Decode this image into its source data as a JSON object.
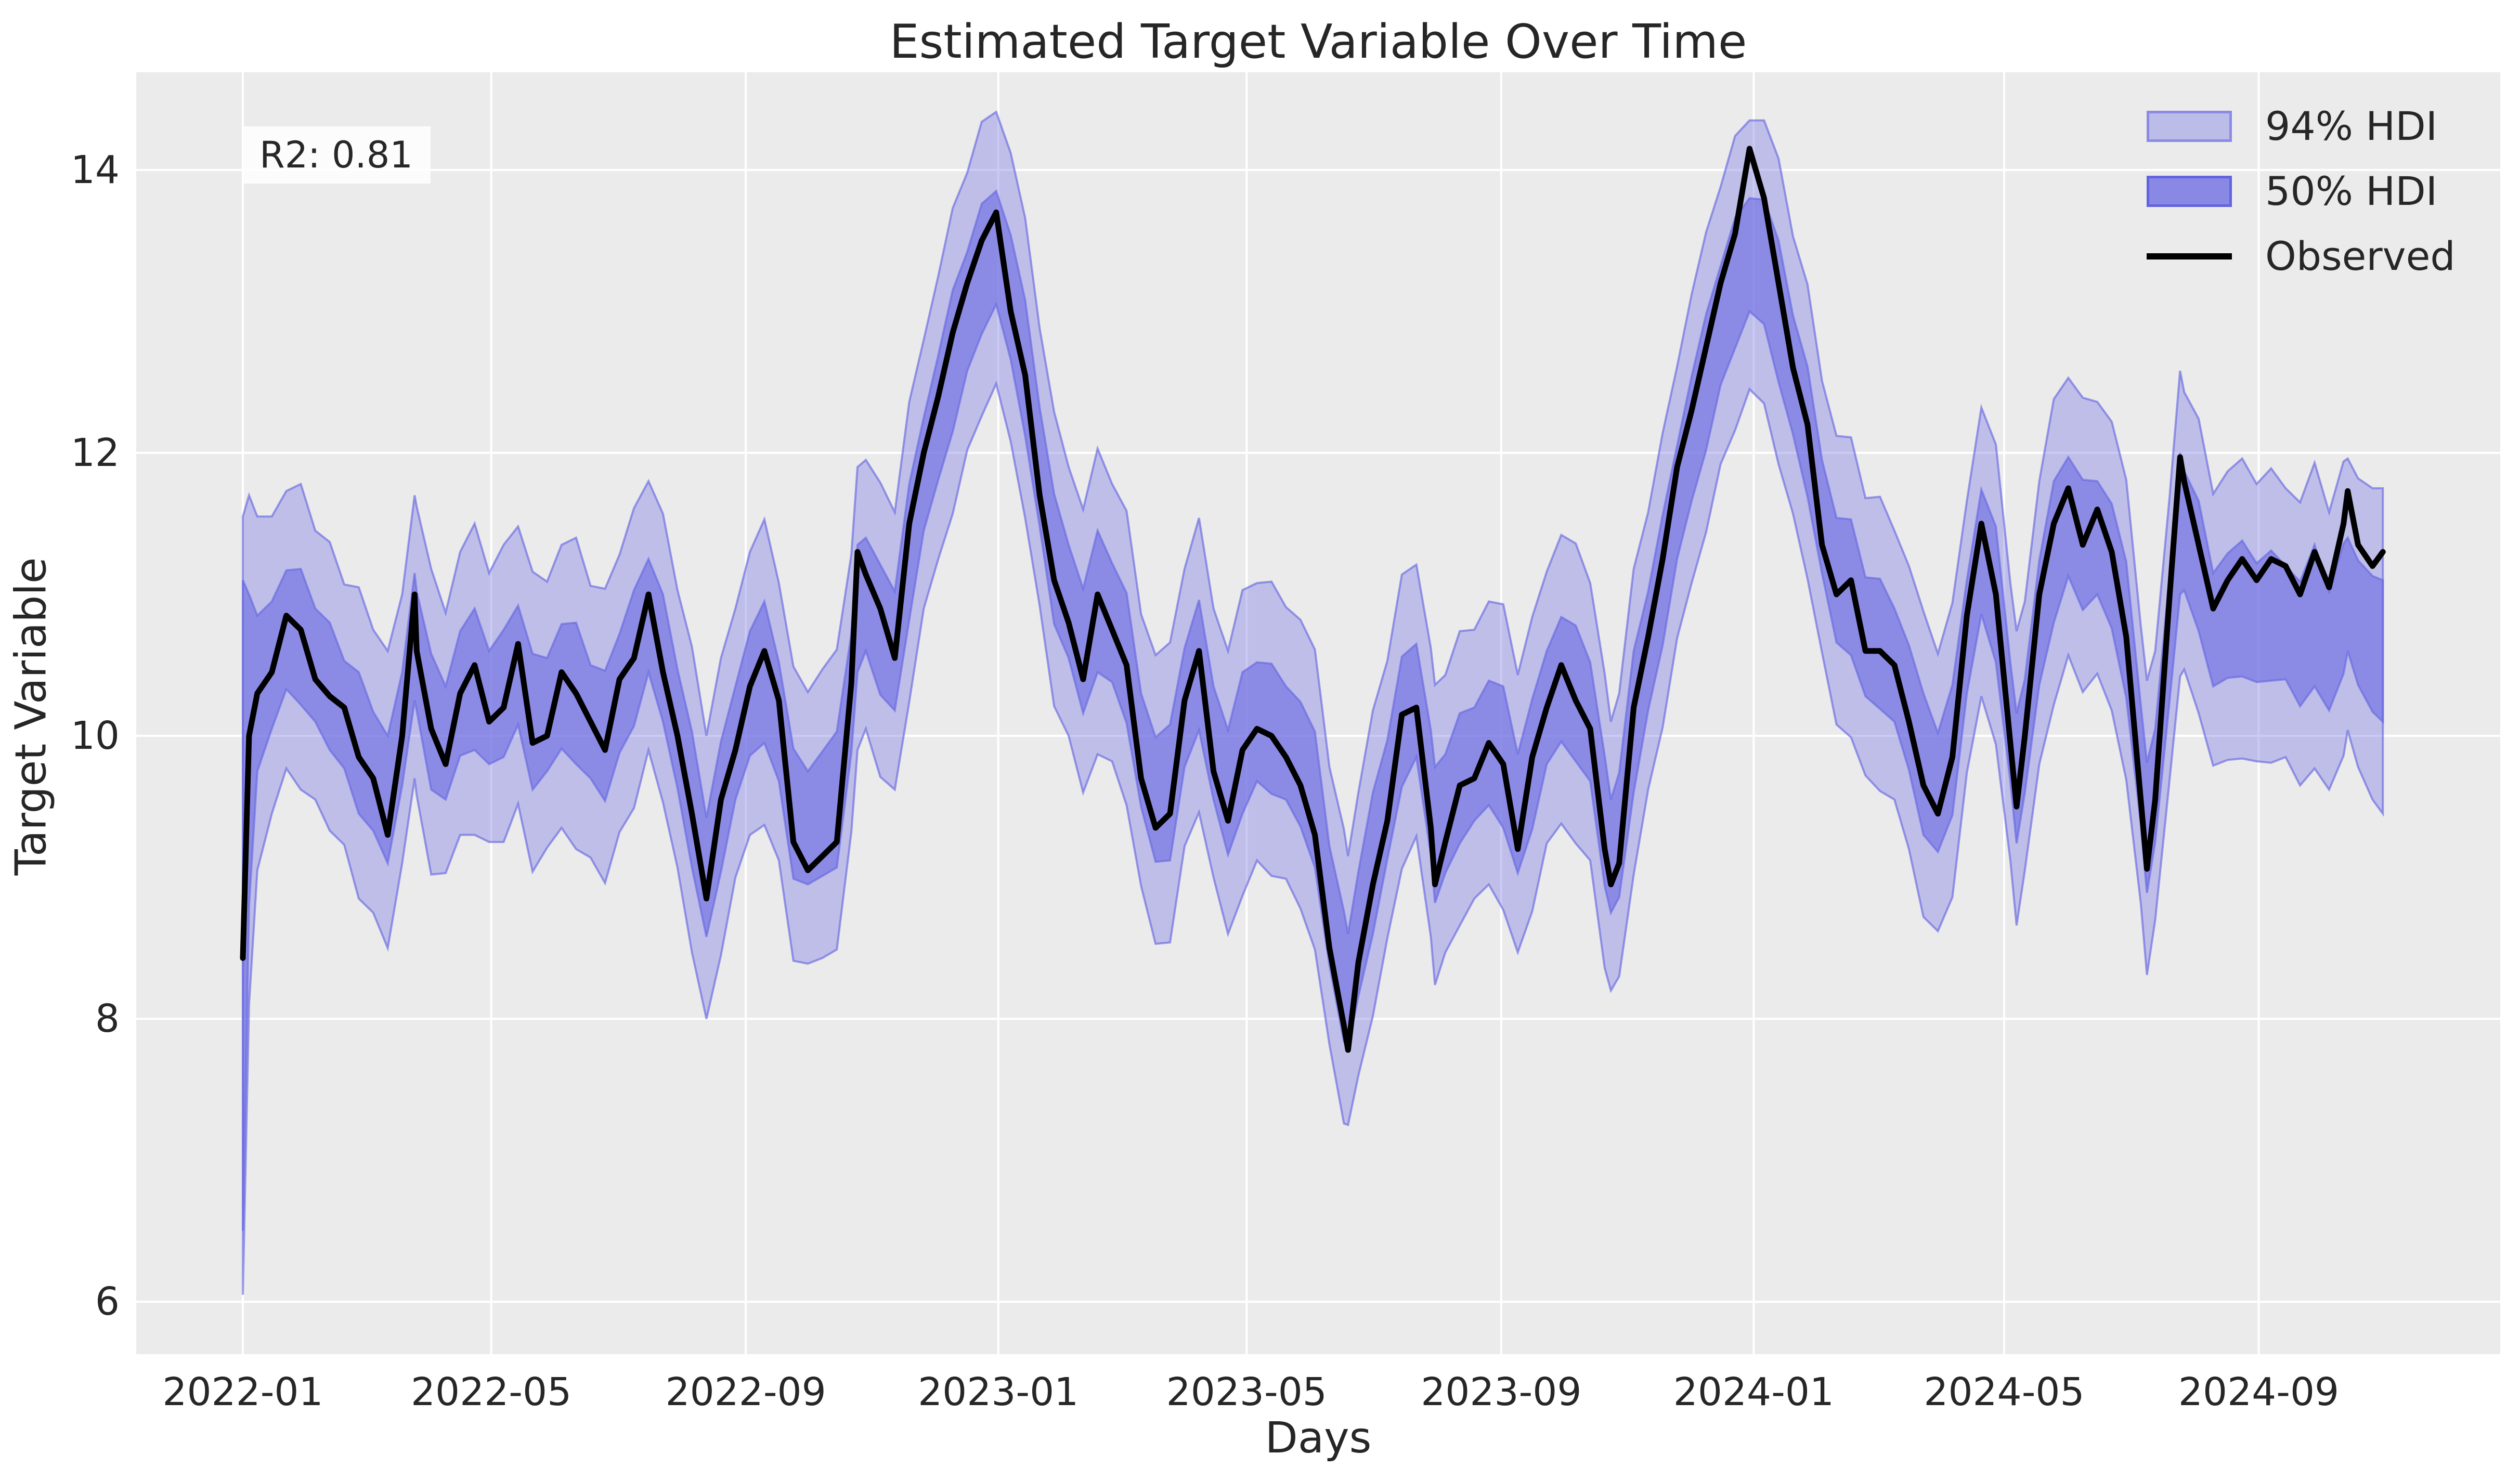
{
  "title": "Estimated Target Variable Over Time",
  "annotation": "R2: 0.81",
  "axes": {
    "xlabel": "Days",
    "ylabel": "Target Variable"
  },
  "legend": {
    "items": [
      {
        "label": "94% HDI",
        "swatch": "hdi94-patch"
      },
      {
        "label": "50% HDI",
        "swatch": "hdi50-patch"
      },
      {
        "label": "Observed",
        "swatch": "observed-line"
      }
    ]
  },
  "colors": {
    "plot_background": "#ebebeb",
    "gridline": "#ffffff",
    "hdi_base": "#7b7be5",
    "hdi94_fill": "rgba(123,123,229,0.40)",
    "hdi50_fill": "rgba(113,113,227,0.66)",
    "hdi_edge": "rgba(104,104,226,0.65)",
    "observed_line": "#000000",
    "text": "#262626"
  },
  "chart_data": {
    "type": "line",
    "title": "Estimated Target Variable Over Time",
    "xlabel": "Days",
    "ylabel": "Target Variable",
    "grid": true,
    "legend_position": "upper right",
    "x_unit": "days since 2022-01-01",
    "xlim_days": [
      -51.5,
      1090.7
    ],
    "ylim": [
      5.63,
      14.69
    ],
    "y_ticks": [
      6,
      8,
      10,
      12,
      14
    ],
    "x_ticks": [
      {
        "label": "2022-01",
        "day": 0
      },
      {
        "label": "2022-05",
        "day": 120
      },
      {
        "label": "2022-09",
        "day": 243
      },
      {
        "label": "2023-01",
        "day": 365
      },
      {
        "label": "2023-05",
        "day": 485
      },
      {
        "label": "2023-09",
        "day": 608
      },
      {
        "label": "2024-01",
        "day": 730
      },
      {
        "label": "2024-05",
        "day": 851
      },
      {
        "label": "2024-09",
        "day": 974
      }
    ],
    "series": [
      {
        "name": "Observed",
        "type": "line",
        "color": "#000000"
      },
      {
        "name": "50% HDI",
        "type": "band",
        "color": "rgba(113,113,227,0.66)"
      },
      {
        "name": "94% HDI",
        "type": "band",
        "color": "rgba(123,123,229,0.40)"
      }
    ],
    "point_format": [
      "day",
      "observed",
      "hdi_mid",
      "hdi50_halfwidth",
      "hdi94_halfwidth"
    ],
    "points": [
      [
        0,
        8.43,
        8.8,
        2.3,
        2.75
      ],
      [
        3,
        10.0,
        9.9,
        1.1,
        1.8
      ],
      [
        7,
        10.3,
        10.3,
        0.55,
        1.25
      ],
      [
        14,
        10.45,
        10.5,
        0.45,
        1.05
      ],
      [
        21,
        10.85,
        10.75,
        0.42,
        0.98
      ],
      [
        28,
        10.75,
        10.7,
        0.48,
        1.08
      ],
      [
        35,
        10.4,
        10.5,
        0.4,
        0.95
      ],
      [
        42,
        10.28,
        10.35,
        0.45,
        1.02
      ],
      [
        49,
        10.2,
        10.15,
        0.38,
        0.92
      ],
      [
        56,
        9.85,
        9.95,
        0.5,
        1.1
      ],
      [
        63,
        9.7,
        9.75,
        0.42,
        1.0
      ],
      [
        70,
        9.3,
        9.55,
        0.45,
        1.05
      ],
      [
        77,
        10.0,
        10.05,
        0.4,
        0.95
      ],
      [
        83,
        11.0,
        10.7,
        0.45,
        1.0
      ],
      [
        84,
        10.6,
        10.6,
        0.42,
        1.02
      ],
      [
        91,
        10.05,
        10.1,
        0.48,
        1.08
      ],
      [
        98,
        9.8,
        9.95,
        0.4,
        0.92
      ],
      [
        105,
        10.3,
        10.3,
        0.44,
        1.0
      ],
      [
        112,
        10.5,
        10.4,
        0.5,
        1.1
      ],
      [
        119,
        10.1,
        10.2,
        0.4,
        0.95
      ],
      [
        126,
        10.2,
        10.3,
        0.45,
        1.05
      ],
      [
        133,
        10.65,
        10.5,
        0.42,
        0.98
      ],
      [
        140,
        9.95,
        10.1,
        0.48,
        1.06
      ],
      [
        147,
        10.0,
        10.15,
        0.4,
        0.94
      ],
      [
        154,
        10.45,
        10.35,
        0.44,
        1.0
      ],
      [
        161,
        10.3,
        10.3,
        0.5,
        1.1
      ],
      [
        168,
        10.1,
        10.1,
        0.4,
        0.96
      ],
      [
        175,
        9.9,
        10.0,
        0.46,
        1.04
      ],
      [
        182,
        10.4,
        10.3,
        0.42,
        0.98
      ],
      [
        189,
        10.55,
        10.55,
        0.48,
        1.06
      ],
      [
        196,
        11.0,
        10.85,
        0.4,
        0.95
      ],
      [
        203,
        10.45,
        10.55,
        0.45,
        1.02
      ],
      [
        210,
        10.0,
        10.05,
        0.42,
        0.98
      ],
      [
        217,
        9.45,
        9.55,
        0.48,
        1.08
      ],
      [
        224,
        8.85,
        9.0,
        0.42,
        1.0
      ],
      [
        231,
        9.55,
        9.5,
        0.46,
        1.05
      ],
      [
        238,
        9.9,
        9.95,
        0.4,
        0.95
      ],
      [
        245,
        10.35,
        10.3,
        0.44,
        1.0
      ],
      [
        252,
        10.6,
        10.45,
        0.5,
        1.08
      ],
      [
        259,
        10.25,
        10.1,
        0.42,
        0.98
      ],
      [
        266,
        9.25,
        9.45,
        0.46,
        1.04
      ],
      [
        273,
        9.05,
        9.35,
        0.4,
        0.96
      ],
      [
        280,
        9.15,
        9.45,
        0.44,
        1.02
      ],
      [
        287,
        9.25,
        9.55,
        0.48,
        1.06
      ],
      [
        294,
        10.37,
        10.3,
        0.42,
        0.98
      ],
      [
        297,
        11.3,
        10.9,
        0.45,
        1.0
      ],
      [
        301,
        11.14,
        11.0,
        0.4,
        0.95
      ],
      [
        308,
        10.9,
        10.75,
        0.46,
        1.04
      ],
      [
        315,
        10.55,
        10.6,
        0.42,
        0.98
      ],
      [
        322,
        11.5,
        11.3,
        0.48,
        1.06
      ],
      [
        329,
        12.0,
        11.85,
        0.4,
        0.95
      ],
      [
        336,
        12.4,
        12.25,
        0.44,
        1.0
      ],
      [
        343,
        12.85,
        12.65,
        0.5,
        1.08
      ],
      [
        350,
        13.2,
        13.0,
        0.42,
        0.98
      ],
      [
        357,
        13.5,
        13.3,
        0.46,
        1.04
      ],
      [
        364,
        13.7,
        13.45,
        0.4,
        0.96
      ],
      [
        371,
        13.0,
        13.1,
        0.44,
        1.02
      ],
      [
        378,
        12.55,
        12.6,
        0.48,
        1.06
      ],
      [
        385,
        11.7,
        11.9,
        0.42,
        0.98
      ],
      [
        392,
        11.1,
        11.25,
        0.46,
        1.04
      ],
      [
        399,
        10.8,
        10.95,
        0.4,
        0.95
      ],
      [
        406,
        10.4,
        10.6,
        0.44,
        1.0
      ],
      [
        413,
        11.0,
        10.95,
        0.5,
        1.08
      ],
      [
        420,
        10.75,
        10.8,
        0.42,
        0.98
      ],
      [
        427,
        10.5,
        10.55,
        0.46,
        1.04
      ],
      [
        434,
        9.7,
        9.9,
        0.4,
        0.96
      ],
      [
        441,
        9.35,
        9.55,
        0.44,
        1.02
      ],
      [
        448,
        9.45,
        9.6,
        0.48,
        1.06
      ],
      [
        455,
        10.25,
        10.2,
        0.42,
        0.98
      ],
      [
        462,
        10.6,
        10.5,
        0.46,
        1.04
      ],
      [
        469,
        9.75,
        9.95,
        0.4,
        0.95
      ],
      [
        476,
        9.4,
        9.6,
        0.44,
        1.0
      ],
      [
        483,
        9.9,
        9.95,
        0.5,
        1.08
      ],
      [
        490,
        10.05,
        10.1,
        0.42,
        0.98
      ],
      [
        497,
        10.0,
        10.05,
        0.46,
        1.04
      ],
      [
        504,
        9.85,
        9.95,
        0.4,
        0.96
      ],
      [
        511,
        9.65,
        9.8,
        0.44,
        1.02
      ],
      [
        518,
        9.3,
        9.55,
        0.48,
        1.06
      ],
      [
        525,
        8.5,
        8.8,
        0.42,
        0.98
      ],
      [
        532,
        7.95,
        8.3,
        0.46,
        1.04
      ],
      [
        534,
        7.78,
        8.2,
        0.4,
        0.95
      ],
      [
        539,
        8.4,
        8.6,
        0.44,
        1.0
      ],
      [
        546,
        8.95,
        9.1,
        0.5,
        1.08
      ],
      [
        553,
        9.4,
        9.55,
        0.42,
        0.98
      ],
      [
        560,
        10.15,
        10.1,
        0.46,
        1.04
      ],
      [
        567,
        10.2,
        10.25,
        0.4,
        0.96
      ],
      [
        574,
        9.35,
        9.6,
        0.44,
        1.02
      ],
      [
        576,
        8.95,
        9.3,
        0.48,
        1.06
      ],
      [
        581,
        9.25,
        9.45,
        0.42,
        0.98
      ],
      [
        588,
        9.65,
        9.7,
        0.46,
        1.04
      ],
      [
        595,
        9.7,
        9.8,
        0.4,
        0.95
      ],
      [
        602,
        9.95,
        9.95,
        0.44,
        1.0
      ],
      [
        609,
        9.8,
        9.85,
        0.5,
        1.08
      ],
      [
        616,
        9.2,
        9.45,
        0.42,
        0.98
      ],
      [
        623,
        9.85,
        9.8,
        0.46,
        1.04
      ],
      [
        630,
        10.2,
        10.2,
        0.4,
        0.96
      ],
      [
        637,
        10.5,
        10.4,
        0.44,
        1.02
      ],
      [
        644,
        10.25,
        10.3,
        0.48,
        1.06
      ],
      [
        651,
        10.05,
        10.1,
        0.42,
        0.98
      ],
      [
        658,
        9.2,
        9.4,
        0.46,
        1.04
      ],
      [
        661,
        8.95,
        9.15,
        0.4,
        0.95
      ],
      [
        665,
        9.1,
        9.3,
        0.44,
        1.0
      ],
      [
        672,
        10.2,
        10.1,
        0.5,
        1.08
      ],
      [
        679,
        10.7,
        10.6,
        0.42,
        0.98
      ],
      [
        686,
        11.25,
        11.1,
        0.46,
        1.04
      ],
      [
        693,
        11.9,
        11.65,
        0.4,
        0.96
      ],
      [
        700,
        12.3,
        12.1,
        0.44,
        1.02
      ],
      [
        707,
        12.75,
        12.5,
        0.48,
        1.06
      ],
      [
        714,
        13.2,
        12.9,
        0.42,
        0.98
      ],
      [
        721,
        13.55,
        13.2,
        0.46,
        1.04
      ],
      [
        728,
        14.15,
        13.4,
        0.4,
        0.95
      ],
      [
        735,
        13.8,
        13.35,
        0.44,
        1.0
      ],
      [
        742,
        13.2,
        13.0,
        0.5,
        1.08
      ],
      [
        749,
        12.6,
        12.55,
        0.42,
        0.98
      ],
      [
        756,
        12.2,
        12.15,
        0.46,
        1.04
      ],
      [
        763,
        11.35,
        11.55,
        0.4,
        0.96
      ],
      [
        770,
        11.0,
        11.1,
        0.44,
        1.02
      ],
      [
        777,
        11.1,
        11.05,
        0.48,
        1.06
      ],
      [
        784,
        10.6,
        10.7,
        0.42,
        0.98
      ],
      [
        791,
        10.6,
        10.65,
        0.46,
        1.04
      ],
      [
        798,
        10.5,
        10.5,
        0.4,
        0.95
      ],
      [
        805,
        10.1,
        10.2,
        0.44,
        1.0
      ],
      [
        812,
        9.65,
        9.8,
        0.5,
        1.08
      ],
      [
        819,
        9.45,
        9.6,
        0.42,
        0.98
      ],
      [
        826,
        9.85,
        9.9,
        0.46,
        1.04
      ],
      [
        833,
        10.85,
        10.7,
        0.4,
        0.96
      ],
      [
        840,
        11.5,
        11.3,
        0.44,
        1.02
      ],
      [
        847,
        11.0,
        11.0,
        0.48,
        1.06
      ],
      [
        854,
        9.95,
        10.1,
        0.42,
        0.98
      ],
      [
        857,
        9.5,
        9.7,
        0.46,
        1.04
      ],
      [
        861,
        10.0,
        10.0,
        0.4,
        0.95
      ],
      [
        868,
        11.0,
        10.8,
        0.44,
        1.0
      ],
      [
        875,
        11.5,
        11.3,
        0.5,
        1.08
      ],
      [
        882,
        11.75,
        11.55,
        0.42,
        0.98
      ],
      [
        889,
        11.35,
        11.35,
        0.46,
        1.04
      ],
      [
        896,
        11.6,
        11.4,
        0.4,
        0.96
      ],
      [
        903,
        11.3,
        11.2,
        0.44,
        1.02
      ],
      [
        910,
        10.7,
        10.75,
        0.48,
        1.06
      ],
      [
        917,
        9.55,
        9.8,
        0.42,
        0.98
      ],
      [
        920,
        9.06,
        9.35,
        0.46,
        1.04
      ],
      [
        924,
        9.55,
        9.65,
        0.4,
        0.95
      ],
      [
        931,
        11.0,
        10.7,
        0.44,
        1.0
      ],
      [
        936,
        11.97,
        11.5,
        0.5,
        1.08
      ],
      [
        938,
        11.8,
        11.45,
        0.42,
        0.98
      ],
      [
        945,
        11.35,
        11.2,
        0.46,
        1.04
      ],
      [
        952,
        10.9,
        10.75,
        0.4,
        0.96
      ],
      [
        959,
        11.1,
        10.85,
        0.44,
        1.02
      ],
      [
        966,
        11.25,
        10.9,
        0.48,
        1.06
      ],
      [
        973,
        11.1,
        10.8,
        0.42,
        0.98
      ],
      [
        980,
        11.25,
        10.85,
        0.46,
        1.04
      ],
      [
        987,
        11.2,
        10.8,
        0.4,
        0.95
      ],
      [
        994,
        11.0,
        10.65,
        0.44,
        1.0
      ],
      [
        1001,
        11.3,
        10.85,
        0.5,
        1.08
      ],
      [
        1008,
        11.05,
        10.6,
        0.42,
        0.98
      ],
      [
        1015,
        11.5,
        10.9,
        0.46,
        1.04
      ],
      [
        1017,
        11.73,
        11.0,
        0.4,
        0.96
      ],
      [
        1022,
        11.35,
        10.8,
        0.44,
        1.02
      ],
      [
        1029,
        11.2,
        10.65,
        0.48,
        1.1
      ],
      [
        1034,
        11.3,
        10.6,
        0.5,
        1.15
      ]
    ]
  }
}
